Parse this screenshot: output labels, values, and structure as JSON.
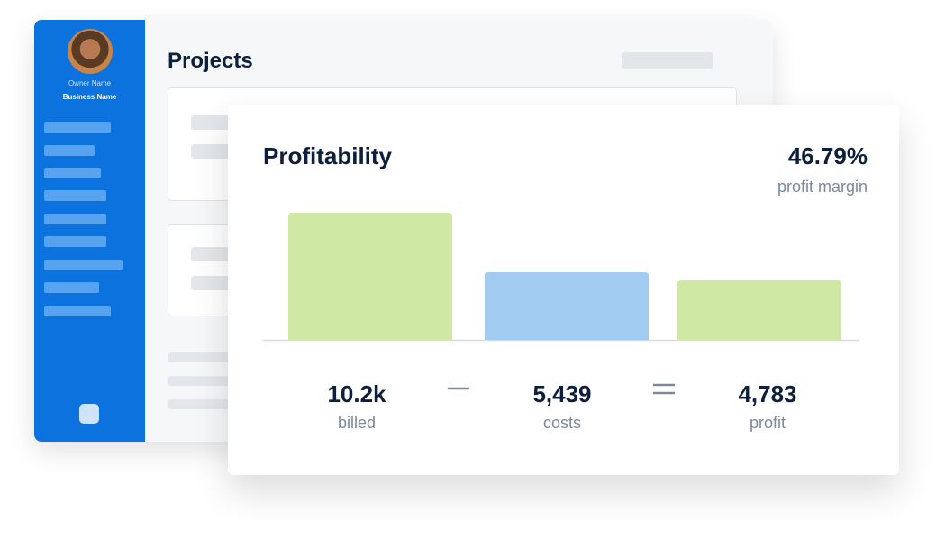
{
  "sidebar": {
    "owner_name": "Owner Name",
    "business_name": "Business Name"
  },
  "projects": {
    "title": "Projects"
  },
  "chart_data": {
    "type": "bar",
    "title": "Profitability",
    "metric_value": "46.79%",
    "metric_label": "profit margin",
    "categories": [
      "billed",
      "costs",
      "profit"
    ],
    "values": [
      10222,
      5439,
      4783
    ],
    "value_labels": [
      "10.2k",
      "5,439",
      "4,783"
    ],
    "colors": [
      "#cfe8a4",
      "#a2cbf1",
      "#cfe8a4"
    ]
  }
}
